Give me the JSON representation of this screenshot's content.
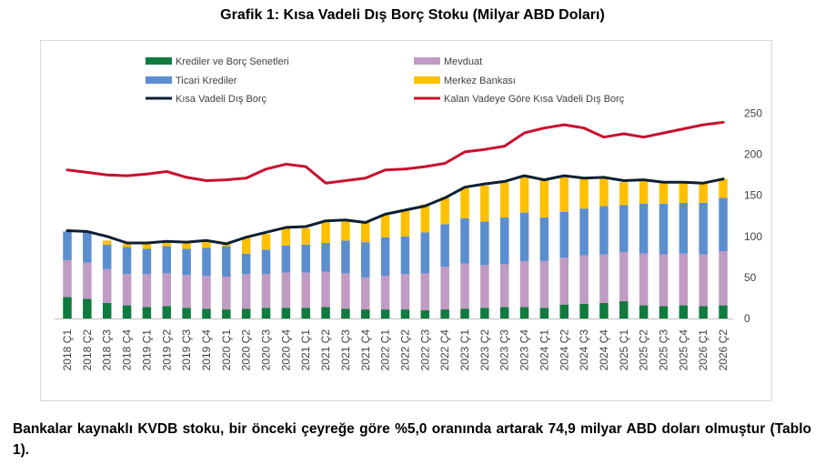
{
  "title": "Grafik 1: Kısa Vadeli Dış Borç Stoku (Milyar ABD Doları)",
  "caption": "Bankalar kaynaklı KVDB stoku, bir önceki çeyreğe göre %5,0 oranında artarak 74,9 milyar ABD doları olmuştur (Tablo 1).",
  "chart_data": {
    "type": "bar",
    "stacked": true,
    "y_axis_side": "right",
    "ylim": [
      0,
      250
    ],
    "yticks": [
      0,
      50,
      100,
      150,
      200,
      250
    ],
    "grid": false,
    "legend_position": "top",
    "categories": [
      "2018 Ç1",
      "2018 Ç2",
      "2018 Ç3",
      "2018 Ç4",
      "2019 Ç1",
      "2019 Ç2",
      "2019 Ç3",
      "2019 Ç4",
      "2020 Ç1",
      "2020 Ç2",
      "2020 Ç3",
      "2020 Ç4",
      "2021 Ç1",
      "2021 Ç2",
      "2021 Ç3",
      "2021 Ç4",
      "2022 Ç1",
      "2022 Ç2",
      "2022 Ç3",
      "2022 Ç4",
      "2023 Ç1",
      "2023 Ç2",
      "2023 Ç3",
      "2023 Ç4",
      "2024 Ç1",
      "2024 Ç2",
      "2024 Ç3",
      "2024 Ç4",
      "2025 Ç1",
      "2025 Ç2",
      "2025 Ç3",
      "2025 Ç4",
      "2026 Ç1",
      "2026 Ç2"
    ],
    "series": [
      {
        "name": "Krediler ve Borç Senetleri",
        "kind": "bar",
        "color": "#0f7b3f",
        "values": [
          26,
          24,
          19,
          16,
          14,
          15,
          13,
          12,
          11,
          12,
          13,
          13,
          13,
          14,
          12,
          11,
          11,
          11,
          10,
          11,
          12,
          13,
          14,
          14,
          13,
          17,
          18,
          19,
          21,
          16,
          15,
          16,
          15,
          16
        ]
      },
      {
        "name": "Mevduat",
        "kind": "bar",
        "color": "#c09bc3",
        "values": [
          45,
          44,
          41,
          38,
          40,
          40,
          40,
          40,
          40,
          42,
          41,
          43,
          43,
          43,
          43,
          39,
          41,
          43,
          45,
          52,
          55,
          52,
          52,
          56,
          57,
          57,
          59,
          59,
          60,
          63,
          63,
          63,
          63,
          66
        ]
      },
      {
        "name": "Ticari Krediler",
        "kind": "bar",
        "color": "#5b8ecf",
        "values": [
          35,
          37,
          30,
          33,
          31,
          33,
          32,
          34,
          37,
          25,
          30,
          33,
          34,
          35,
          40,
          43,
          47,
          46,
          50,
          52,
          55,
          53,
          57,
          59,
          53,
          56,
          57,
          59,
          57,
          61,
          62,
          62,
          63,
          65
        ]
      },
      {
        "name": "Merkez Bankası",
        "kind": "bar",
        "color": "#ffc000",
        "values": [
          0,
          0,
          5,
          4,
          6,
          5,
          7,
          8,
          3,
          20,
          19,
          21,
          20,
          26,
          25,
          25,
          27,
          32,
          34,
          33,
          37,
          44,
          43,
          46,
          47,
          42,
          37,
          34,
          28,
          28,
          25,
          25,
          25,
          23
        ]
      },
      {
        "name": "Kısa Vadeli Dış Borç",
        "kind": "line",
        "color": "#0d1f33",
        "values": [
          107,
          106,
          100,
          92,
          92,
          94,
          93,
          95,
          91,
          99,
          105,
          111,
          112,
          119,
          120,
          117,
          127,
          132,
          137,
          147,
          160,
          164,
          167,
          174,
          169,
          174,
          171,
          172,
          168,
          169,
          166,
          166,
          165,
          170
        ]
      },
      {
        "name": "Kalan Vadeye Göre Kısa Vadeli Dış Borç",
        "kind": "line",
        "color": "#c8102e",
        "values": [
          181,
          178,
          175,
          174,
          176,
          179,
          172,
          168,
          169,
          171,
          182,
          188,
          185,
          165,
          168,
          171,
          181,
          182,
          185,
          189,
          203,
          206,
          210,
          226,
          232,
          236,
          232,
          221,
          225,
          221,
          226,
          231,
          236,
          239
        ]
      }
    ]
  }
}
